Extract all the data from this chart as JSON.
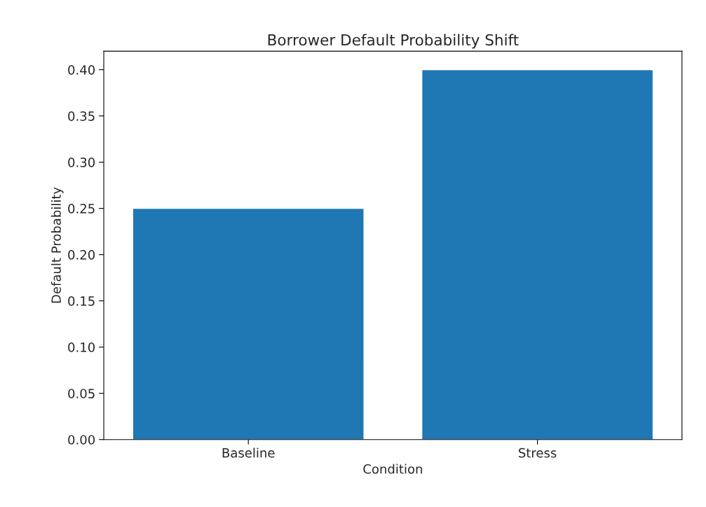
{
  "chart_data": {
    "type": "bar",
    "title": "Borrower Default Probability Shift",
    "xlabel": "Condition",
    "ylabel": "Default Probability",
    "categories": [
      "Baseline",
      "Stress"
    ],
    "values": [
      0.25,
      0.4
    ],
    "color": "#1f77b4",
    "ylim": [
      0,
      0.42
    ],
    "yticks": [
      {
        "value": 0,
        "label": "0.00"
      },
      {
        "value": 0.05,
        "label": "0.05"
      },
      {
        "value": 0.1,
        "label": "0.10"
      },
      {
        "value": 0.15,
        "label": "0.15"
      },
      {
        "value": 0.2,
        "label": "0.20"
      },
      {
        "value": 0.25,
        "label": "0.25"
      },
      {
        "value": 0.3,
        "label": "0.30"
      },
      {
        "value": 0.35,
        "label": "0.35"
      },
      {
        "value": 0.4,
        "label": "0.40"
      }
    ],
    "grid": false
  }
}
